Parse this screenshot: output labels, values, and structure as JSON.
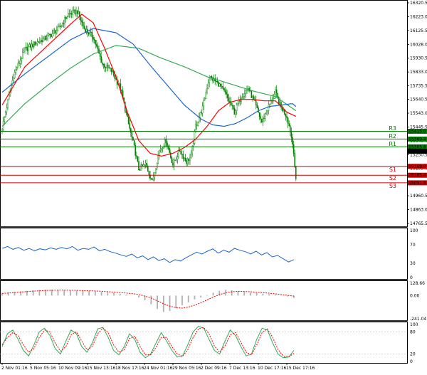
{
  "chart_data": [
    {
      "type": "candlestick",
      "panel": "price",
      "title": "",
      "ylim": [
        14765.5,
        16320.5
      ],
      "y_ticks": [
        "16320.5",
        "16223.0",
        "16125.5",
        "16028.0",
        "15930.5",
        "15833.0",
        "15735.5",
        "15640.5",
        "15543.0",
        "15445.5",
        "15348.0",
        "15250.5",
        "15153.0",
        "15055.5",
        "14960.5",
        "14863.0",
        "14765.5"
      ],
      "x_labels": [
        "2 Nov 01:16",
        "5 Nov 05:16",
        "10 Nov 09:16",
        "15 Nov 13:16",
        "18 Nov 17:16",
        "24 Nov 01:16",
        "29 Nov 05:16",
        "2 Dec 09:16",
        "7 Dec 13:16",
        "10 Dec 17:16",
        "15 Dec 17:16"
      ],
      "close_anchors": [
        [
          0,
          15440
        ],
        [
          10,
          15810
        ],
        [
          20,
          15990
        ],
        [
          30,
          16040
        ],
        [
          40,
          16080
        ],
        [
          50,
          16140
        ],
        [
          58,
          16240
        ],
        [
          66,
          16260
        ],
        [
          72,
          16140
        ],
        [
          80,
          16080
        ],
        [
          88,
          15890
        ],
        [
          96,
          15840
        ],
        [
          104,
          15720
        ],
        [
          110,
          15500
        ],
        [
          116,
          15300
        ],
        [
          120,
          15150
        ],
        [
          126,
          15180
        ],
        [
          132,
          15060
        ],
        [
          138,
          15280
        ],
        [
          144,
          15350
        ],
        [
          150,
          15180
        ],
        [
          156,
          15280
        ],
        [
          162,
          15200
        ],
        [
          166,
          15240
        ],
        [
          170,
          15450
        ],
        [
          176,
          15580
        ],
        [
          182,
          15800
        ],
        [
          190,
          15750
        ],
        [
          196,
          15680
        ],
        [
          204,
          15550
        ],
        [
          210,
          15660
        ],
        [
          216,
          15720
        ],
        [
          222,
          15610
        ],
        [
          228,
          15480
        ],
        [
          234,
          15590
        ],
        [
          240,
          15690
        ],
        [
          244,
          15600
        ],
        [
          250,
          15520
        ],
        [
          253,
          15420
        ],
        [
          256,
          15280
        ],
        [
          258,
          15060
        ]
      ],
      "ma_red_anchors": [
        [
          0,
          15600
        ],
        [
          20,
          15870
        ],
        [
          40,
          16020
        ],
        [
          60,
          16170
        ],
        [
          70,
          16240
        ],
        [
          80,
          16180
        ],
        [
          90,
          16000
        ],
        [
          100,
          15800
        ],
        [
          110,
          15550
        ],
        [
          120,
          15350
        ],
        [
          130,
          15260
        ],
        [
          140,
          15240
        ],
        [
          150,
          15260
        ],
        [
          160,
          15300
        ],
        [
          170,
          15360
        ],
        [
          180,
          15450
        ],
        [
          190,
          15560
        ],
        [
          200,
          15620
        ],
        [
          210,
          15640
        ],
        [
          220,
          15640
        ],
        [
          230,
          15630
        ],
        [
          240,
          15630
        ],
        [
          250,
          15550
        ],
        [
          258,
          15520
        ]
      ],
      "ma_blue_anchors": [
        [
          0,
          15690
        ],
        [
          20,
          15820
        ],
        [
          40,
          15940
        ],
        [
          60,
          16060
        ],
        [
          80,
          16140
        ],
        [
          100,
          16110
        ],
        [
          115,
          16030
        ],
        [
          130,
          15880
        ],
        [
          145,
          15740
        ],
        [
          160,
          15600
        ],
        [
          175,
          15500
        ],
        [
          185,
          15460
        ],
        [
          195,
          15450
        ],
        [
          205,
          15470
        ],
        [
          215,
          15510
        ],
        [
          225,
          15560
        ],
        [
          235,
          15590
        ],
        [
          245,
          15600
        ],
        [
          255,
          15610
        ],
        [
          258,
          15590
        ]
      ],
      "ma_green_anchors": [
        [
          0,
          15450
        ],
        [
          20,
          15610
        ],
        [
          40,
          15740
        ],
        [
          60,
          15860
        ],
        [
          80,
          15960
        ],
        [
          100,
          16020
        ],
        [
          120,
          16000
        ],
        [
          140,
          15930
        ],
        [
          160,
          15870
        ],
        [
          180,
          15800
        ],
        [
          200,
          15750
        ],
        [
          220,
          15700
        ],
        [
          240,
          15660
        ],
        [
          258,
          15560
        ]
      ],
      "levels": [
        {
          "name": "R3",
          "value": 15415.0,
          "color": "#008000"
        },
        {
          "name": "R2",
          "value": 15360.4,
          "color": "#008000"
        },
        {
          "name": "R1",
          "value": 15305.8,
          "color": "#008000"
        },
        {
          "name": "S1",
          "value": 15168.0,
          "color": "#cc0000"
        },
        {
          "name": "S2",
          "value": 15105.4,
          "color": "#cc0000"
        },
        {
          "name": "S3",
          "value": 15051.8,
          "color": "#cc0000"
        }
      ],
      "current_price": {
        "label": "15274.5",
        "color": "#000000"
      },
      "colors": {
        "candles": "#008000",
        "ma_fast": "#ff0000",
        "ma_mid": "#1a66cc",
        "ma_slow": "#33aa55"
      }
    },
    {
      "type": "line",
      "panel": "rsi",
      "title": "",
      "ylim": [
        0,
        100
      ],
      "y_ticks": [
        "100",
        "70",
        "30",
        "0"
      ],
      "values": [
        62,
        66,
        60,
        64,
        58,
        62,
        57,
        61,
        59,
        63,
        60,
        64,
        61,
        66,
        58,
        62,
        60,
        65,
        57,
        60,
        55,
        52,
        48,
        45,
        50,
        42,
        46,
        38,
        44,
        36,
        40,
        32,
        38,
        35,
        42,
        48,
        54,
        50,
        56,
        61,
        52,
        58,
        54,
        62,
        58,
        55,
        50,
        56,
        48,
        53,
        44,
        47,
        40,
        33,
        38
      ],
      "color": "#1a66cc"
    },
    {
      "type": "bar",
      "panel": "macd",
      "title": "",
      "ylim": [
        -241.04,
        128.66
      ],
      "y_ticks": [
        "128.66",
        "0.00",
        "-241.04"
      ],
      "histogram": [
        28,
        34,
        40,
        45,
        50,
        55,
        58,
        60,
        62,
        60,
        58,
        55,
        52,
        50,
        48,
        45,
        40,
        35,
        28,
        20,
        10,
        0,
        -20,
        -50,
        -90,
        -140,
        -170,
        -160,
        -130,
        -100,
        -70,
        -40,
        -20,
        5,
        30,
        50,
        60,
        55,
        45,
        38,
        30,
        25,
        20,
        15,
        8,
        0,
        -10,
        -25
      ],
      "signal": [
        22,
        27,
        32,
        37,
        42,
        46,
        50,
        53,
        55,
        56,
        56,
        55,
        54,
        52,
        50,
        48,
        45,
        41,
        37,
        32,
        26,
        20,
        10,
        -5,
        -25,
        -55,
        -85,
        -110,
        -125,
        -130,
        -120,
        -100,
        -75,
        -45,
        -15,
        10,
        28,
        40,
        44,
        43,
        40,
        35,
        30,
        25,
        18,
        10,
        2,
        -5
      ],
      "colors": {
        "histogram": "#b0b0b0",
        "signal": "#ff0000"
      }
    },
    {
      "type": "line",
      "panel": "stochastic",
      "title": "",
      "ylim": [
        0,
        100
      ],
      "y_ticks": [
        "100",
        "80",
        "20",
        "0"
      ],
      "k_values": [
        40,
        75,
        85,
        60,
        30,
        15,
        45,
        80,
        90,
        70,
        35,
        20,
        55,
        85,
        75,
        40,
        25,
        50,
        88,
        92,
        65,
        30,
        18,
        40,
        75,
        60,
        25,
        10,
        20,
        50,
        78,
        55,
        30,
        12,
        15,
        45,
        80,
        95,
        90,
        60,
        30,
        20,
        55,
        85,
        70,
        40,
        15,
        20,
        60,
        90,
        85,
        50,
        20,
        10,
        12,
        30
      ],
      "d_values": [
        45,
        65,
        78,
        70,
        45,
        25,
        35,
        65,
        85,
        80,
        50,
        28,
        40,
        72,
        80,
        55,
        32,
        40,
        75,
        90,
        78,
        45,
        25,
        32,
        62,
        68,
        40,
        18,
        18,
        38,
        65,
        65,
        40,
        20,
        14,
        32,
        65,
        88,
        92,
        75,
        42,
        25,
        42,
        72,
        78,
        52,
        25,
        18,
        45,
        78,
        88,
        65,
        32,
        15,
        12,
        22
      ],
      "colors": {
        "k": "#33aa55",
        "d": "#ff0000"
      }
    }
  ]
}
